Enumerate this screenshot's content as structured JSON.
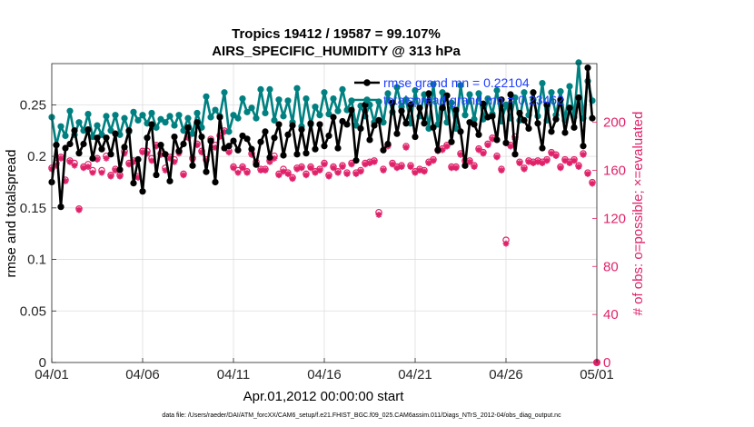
{
  "chart_data": {
    "type": "line",
    "title": "Tropics 19412 / 19587 = 99.107%",
    "subtitle": "AIRS_SPECIFIC_HUMIDITY @ 313 hPa",
    "xlabel": "Apr.01,2012 00:00:00 start",
    "ylabel_left": "rmse and totalspread",
    "ylabel_right": "# of obs: o=possible; ×=evaluated",
    "x_ticks": [
      "04/01",
      "04/06",
      "04/11",
      "04/16",
      "04/21",
      "04/26",
      "05/01"
    ],
    "y_left_ticks": [
      "0",
      "0.05",
      "0.1",
      "0.15",
      "0.2",
      "0.25"
    ],
    "y_right_ticks": [
      "0",
      "40",
      "80",
      "120",
      "160",
      "200"
    ],
    "xlim": [
      0,
      30
    ],
    "ylim_left": [
      0,
      0.29
    ],
    "ylim_right": [
      0,
      248.9
    ],
    "grid": true,
    "legend": [
      {
        "name": "rmse",
        "label": "rmse grand mn = 0.22104",
        "color": "#000000"
      },
      {
        "name": "totalspread",
        "label": "totalspread grand mn = 0.23462",
        "color": "#008080"
      }
    ],
    "series": [
      {
        "name": "rmse",
        "axis": "left",
        "color": "#000000",
        "marker": "filled-circle",
        "x": [
          0,
          0.25,
          0.5,
          0.75,
          1,
          1.25,
          1.5,
          1.75,
          2,
          2.25,
          2.5,
          2.75,
          3,
          3.25,
          3.5,
          3.75,
          4,
          4.25,
          4.5,
          4.75,
          5,
          5.25,
          5.5,
          5.75,
          6,
          6.25,
          6.5,
          6.75,
          7,
          7.25,
          7.5,
          7.75,
          8,
          8.25,
          8.5,
          8.75,
          9,
          9.25,
          9.5,
          9.75,
          10,
          10.25,
          10.5,
          10.75,
          11,
          11.25,
          11.5,
          11.75,
          12,
          12.25,
          12.5,
          12.75,
          13,
          13.25,
          13.5,
          13.75,
          14,
          14.25,
          14.5,
          14.75,
          15,
          15.25,
          15.5,
          15.75,
          16,
          16.25,
          16.5,
          16.75,
          17,
          17.25,
          17.5,
          17.75,
          18,
          18.25,
          18.5,
          18.75,
          19,
          19.25,
          19.5,
          19.75,
          20,
          20.25,
          20.5,
          20.75,
          21,
          21.25,
          21.5,
          21.75,
          22,
          22.25,
          22.5,
          22.75,
          23,
          23.25,
          23.5,
          23.75,
          24,
          24.25,
          24.5,
          24.75,
          25,
          25.25,
          25.5,
          25.75,
          26,
          26.25,
          26.5,
          26.75,
          27,
          27.25,
          27.5,
          27.75,
          28,
          28.25,
          28.5,
          28.75,
          29,
          29.25,
          29.5,
          29.75
        ],
        "values": [
          0.175,
          0.211,
          0.151,
          0.208,
          0.212,
          0.225,
          0.203,
          0.212,
          0.226,
          0.198,
          0.218,
          0.207,
          0.218,
          0.202,
          0.222,
          0.187,
          0.209,
          0.225,
          0.174,
          0.197,
          0.166,
          0.218,
          0.231,
          0.182,
          0.211,
          0.202,
          0.176,
          0.219,
          0.205,
          0.212,
          0.228,
          0.191,
          0.233,
          0.219,
          0.185,
          0.215,
          0.175,
          0.238,
          0.208,
          0.21,
          0.215,
          0.206,
          0.22,
          0.217,
          0.207,
          0.192,
          0.214,
          0.224,
          0.199,
          0.218,
          0.231,
          0.201,
          0.221,
          0.23,
          0.202,
          0.226,
          0.203,
          0.232,
          0.207,
          0.231,
          0.21,
          0.22,
          0.238,
          0.208,
          0.234,
          0.231,
          0.245,
          0.196,
          0.227,
          0.25,
          0.216,
          0.23,
          0.235,
          0.206,
          0.212,
          0.252,
          0.222,
          0.244,
          0.232,
          0.25,
          0.219,
          0.247,
          0.232,
          0.261,
          0.228,
          0.206,
          0.247,
          0.259,
          0.214,
          0.245,
          0.224,
          0.191,
          0.233,
          0.231,
          0.221,
          0.251,
          0.238,
          0.239,
          0.216,
          0.255,
          0.213,
          0.26,
          0.202,
          0.242,
          0.235,
          0.227,
          0.262,
          0.232,
          0.208,
          0.25,
          0.224,
          0.236,
          0.255,
          0.223,
          0.247,
          0.228,
          0.257,
          0.21,
          0.286,
          0.237
        ]
      },
      {
        "name": "totalspread",
        "axis": "left",
        "color": "#008080",
        "marker": "filled-circle",
        "x": [
          0,
          0.25,
          0.5,
          0.75,
          1,
          1.25,
          1.5,
          1.75,
          2,
          2.25,
          2.5,
          2.75,
          3,
          3.25,
          3.5,
          3.75,
          4,
          4.25,
          4.5,
          4.75,
          5,
          5.25,
          5.5,
          5.75,
          6,
          6.25,
          6.5,
          6.75,
          7,
          7.25,
          7.5,
          7.75,
          8,
          8.25,
          8.5,
          8.75,
          9,
          9.25,
          9.5,
          9.75,
          10,
          10.25,
          10.5,
          10.75,
          11,
          11.25,
          11.5,
          11.75,
          12,
          12.25,
          12.5,
          12.75,
          13,
          13.25,
          13.5,
          13.75,
          14,
          14.25,
          14.5,
          14.75,
          15,
          15.25,
          15.5,
          15.75,
          16,
          16.25,
          16.5,
          16.75,
          17,
          17.25,
          17.5,
          17.75,
          18,
          18.25,
          18.5,
          18.75,
          19,
          19.25,
          19.5,
          19.75,
          20,
          20.25,
          20.5,
          20.75,
          21,
          21.25,
          21.5,
          21.75,
          22,
          22.25,
          22.5,
          22.75,
          23,
          23.25,
          23.5,
          23.75,
          24,
          24.25,
          24.5,
          24.75,
          25,
          25.25,
          25.5,
          25.75,
          26,
          26.25,
          26.5,
          26.75,
          27,
          27.25,
          27.5,
          27.75,
          28,
          28.25,
          28.5,
          28.75,
          29,
          29.25,
          29.5,
          29.75
        ],
        "values": [
          0.238,
          0.211,
          0.229,
          0.22,
          0.244,
          0.221,
          0.233,
          0.225,
          0.241,
          0.219,
          0.23,
          0.221,
          0.239,
          0.225,
          0.24,
          0.221,
          0.237,
          0.224,
          0.243,
          0.235,
          0.24,
          0.232,
          0.242,
          0.228,
          0.236,
          0.233,
          0.239,
          0.23,
          0.24,
          0.225,
          0.237,
          0.222,
          0.242,
          0.228,
          0.258,
          0.238,
          0.245,
          0.239,
          0.262,
          0.224,
          0.24,
          0.237,
          0.256,
          0.243,
          0.247,
          0.237,
          0.265,
          0.242,
          0.265,
          0.235,
          0.255,
          0.239,
          0.254,
          0.233,
          0.266,
          0.229,
          0.256,
          0.231,
          0.248,
          0.24,
          0.262,
          0.241,
          0.256,
          0.244,
          0.265,
          0.245,
          0.254,
          0.23,
          0.249,
          0.239,
          0.25,
          0.233,
          0.253,
          0.233,
          0.261,
          0.243,
          0.267,
          0.248,
          0.255,
          0.232,
          0.264,
          0.239,
          0.26,
          0.227,
          0.27,
          0.231,
          0.262,
          0.233,
          0.252,
          0.227,
          0.269,
          0.24,
          0.26,
          0.236,
          0.261,
          0.236,
          0.256,
          0.241,
          0.264,
          0.234,
          0.25,
          0.237,
          0.257,
          0.235,
          0.262,
          0.24,
          0.255,
          0.239,
          0.271,
          0.235,
          0.262,
          0.24,
          0.263,
          0.235,
          0.268,
          0.238,
          0.291,
          0.237,
          0.273,
          0.254
        ]
      },
      {
        "name": "obs_possible",
        "axis": "right",
        "color": "#e0226a",
        "marker": "open-circle",
        "x": [
          0,
          0.25,
          0.5,
          0.75,
          1,
          1.25,
          1.5,
          1.75,
          2,
          2.25,
          2.5,
          2.75,
          3,
          3.25,
          3.5,
          3.75,
          4,
          4.25,
          4.5,
          4.75,
          5,
          5.25,
          5.5,
          5.75,
          6,
          6.25,
          6.5,
          6.75,
          7,
          7.25,
          7.5,
          7.75,
          8,
          8.25,
          8.5,
          8.75,
          9,
          9.25,
          9.5,
          9.75,
          10,
          10.25,
          10.5,
          10.75,
          11,
          11.25,
          11.5,
          11.75,
          12,
          12.25,
          12.5,
          12.75,
          13,
          13.25,
          13.5,
          13.75,
          14,
          14.25,
          14.5,
          14.75,
          15,
          15.25,
          15.5,
          15.75,
          16,
          16.25,
          16.5,
          16.75,
          17,
          17.25,
          17.5,
          17.75,
          18,
          18.25,
          18.5,
          18.75,
          19,
          19.25,
          19.5,
          19.75,
          20,
          20.25,
          20.5,
          20.75,
          21,
          21.25,
          21.5,
          21.75,
          22,
          22.25,
          22.5,
          22.75,
          23,
          23.25,
          23.5,
          23.75,
          24,
          24.25,
          24.5,
          24.75,
          25,
          25.25,
          25.5,
          25.75,
          26,
          26.25,
          26.5,
          26.75,
          27,
          27.25,
          27.5,
          27.75,
          28,
          28.25,
          28.5,
          28.75,
          29,
          29.25,
          29.5,
          29.75
        ],
        "values": [
          162,
          166,
          171,
          152,
          168,
          166,
          128,
          163,
          165,
          160,
          170,
          160,
          172,
          156,
          161,
          156,
          176,
          166,
          168,
          155,
          176,
          176,
          170,
          181,
          174,
          162,
          171,
          169,
          176,
          157,
          189,
          170,
          182,
          176,
          169,
          186,
          181,
          189,
          193,
          176,
          163,
          160,
          163,
          159,
          174,
          167,
          161,
          161,
          168,
          172,
          157,
          161,
          158,
          154,
          162,
          163,
          157,
          163,
          159,
          161,
          166,
          156,
          163,
          159,
          164,
          158,
          166,
          158,
          160,
          166,
          167,
          168,
          125,
          161,
          181,
          166,
          163,
          164,
          180,
          164,
          159,
          161,
          160,
          167,
          169,
          177,
          178,
          181,
          163,
          163,
          174,
          168,
          168,
          164,
          178,
          175,
          182,
          187,
          172,
          161,
          102,
          181,
          188,
          167,
          162,
          168,
          167,
          168,
          167,
          169,
          175,
          173,
          163,
          169,
          167,
          169,
          164,
          174,
          158,
          150
        ]
      },
      {
        "name": "obs_evaluated",
        "axis": "right",
        "color": "#e0226a",
        "marker": "asterisk",
        "x": [
          0,
          0.25,
          0.5,
          0.75,
          1,
          1.25,
          1.5,
          1.75,
          2,
          2.25,
          2.5,
          2.75,
          3,
          3.25,
          3.5,
          3.75,
          4,
          4.25,
          4.5,
          4.75,
          5,
          5.25,
          5.5,
          5.75,
          6,
          6.25,
          6.5,
          6.75,
          7,
          7.25,
          7.5,
          7.75,
          8,
          8.25,
          8.5,
          8.75,
          9,
          9.25,
          9.5,
          9.75,
          10,
          10.25,
          10.5,
          10.75,
          11,
          11.25,
          11.5,
          11.75,
          12,
          12.25,
          12.5,
          12.75,
          13,
          13.25,
          13.5,
          13.75,
          14,
          14.25,
          14.5,
          14.75,
          15,
          15.25,
          15.5,
          15.75,
          16,
          16.25,
          16.5,
          16.75,
          17,
          17.25,
          17.5,
          17.75,
          18,
          18.25,
          18.5,
          18.75,
          19,
          19.25,
          19.5,
          19.75,
          20,
          20.25,
          20.5,
          20.75,
          21,
          21.25,
          21.5,
          21.75,
          22,
          22.25,
          22.5,
          22.75,
          23,
          23.25,
          23.5,
          23.75,
          24,
          24.25,
          24.5,
          24.75,
          25,
          25.25,
          25.5,
          25.75,
          26,
          26.25,
          26.5,
          26.75,
          27,
          27.25,
          27.5,
          27.75,
          28,
          28.25,
          28.5,
          28.75,
          29,
          29.25,
          29.5,
          29.75
        ],
        "values": [
          161,
          164,
          170,
          151,
          167,
          164,
          127,
          162,
          163,
          158,
          169,
          158,
          170,
          155,
          160,
          155,
          174,
          165,
          167,
          154,
          175,
          174,
          168,
          180,
          173,
          160,
          170,
          167,
          174,
          156,
          187,
          169,
          181,
          175,
          168,
          185,
          179,
          188,
          192,
          175,
          162,
          158,
          162,
          158,
          173,
          165,
          160,
          160,
          167,
          170,
          156,
          159,
          157,
          153,
          161,
          162,
          156,
          162,
          158,
          160,
          165,
          155,
          162,
          158,
          163,
          157,
          165,
          157,
          159,
          165,
          166,
          167,
          123,
          160,
          180,
          165,
          162,
          163,
          179,
          163,
          158,
          160,
          159,
          166,
          168,
          176,
          177,
          180,
          162,
          162,
          173,
          167,
          167,
          163,
          177,
          174,
          181,
          186,
          171,
          160,
          99,
          180,
          186,
          166,
          161,
          167,
          166,
          167,
          166,
          168,
          174,
          172,
          162,
          168,
          166,
          168,
          163,
          173,
          157,
          149
        ]
      }
    ],
    "zero_marker": {
      "x": 30,
      "value": 0
    }
  },
  "footnote": "data file: /Users/raeder/DAI/ATM_forcXX/CAM6_setup/f.e21.FHIST_BGC.f09_025.CAM6assim.011/Diags_NTrS_2012-04/obs_diag_output.nc"
}
